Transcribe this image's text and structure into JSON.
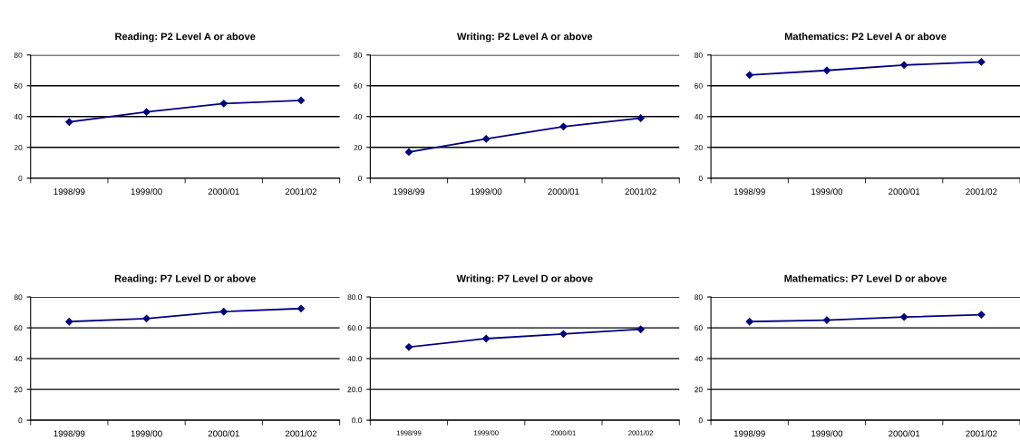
{
  "chart_data": [
    {
      "type": "line",
      "title": "Reading: P2 Level A or above",
      "categories": [
        "1998/99",
        "1999/00",
        "2000/01",
        "2001/02"
      ],
      "series": [
        {
          "color": "#000080",
          "values": [
            36.5,
            43,
            48.5,
            50.5
          ]
        }
      ],
      "ylim": [
        0,
        80
      ],
      "yticks": [
        0,
        20,
        40,
        60,
        80
      ],
      "grid": "y",
      "marker": "diamond",
      "line_style": "solid"
    },
    {
      "type": "line",
      "title": "Writing: P2 Level A or above",
      "categories": [
        "1998/99",
        "1999/00",
        "2000/01",
        "2001/02"
      ],
      "series": [
        {
          "color": "#000080",
          "values": [
            17,
            25.5,
            33.5,
            39
          ]
        }
      ],
      "ylim": [
        0,
        80
      ],
      "yticks": [
        0,
        20,
        40,
        60,
        80
      ],
      "grid": "y",
      "marker": "diamond",
      "line_style": "solid"
    },
    {
      "type": "line",
      "title": "Mathematics: P2 Level A or above",
      "categories": [
        "1998/99",
        "1999/00",
        "2000/01",
        "2001/02"
      ],
      "series": [
        {
          "color": "#000080",
          "values": [
            67,
            70,
            73.5,
            75.5
          ]
        }
      ],
      "ylim": [
        0,
        80
      ],
      "yticks": [
        0,
        20,
        40,
        60,
        80
      ],
      "grid": "y",
      "marker": "diamond",
      "line_style": "solid"
    },
    {
      "type": "line",
      "title": "Reading: P7 Level D or above",
      "categories": [
        "1998/99",
        "1999/00",
        "2000/01",
        "2001/02"
      ],
      "series": [
        {
          "color": "#000080",
          "values": [
            64,
            66,
            70.5,
            72.5
          ]
        }
      ],
      "ylim": [
        0,
        80
      ],
      "yticks": [
        0,
        20,
        40,
        60,
        80
      ],
      "grid": "y",
      "marker": "diamond",
      "line_style": "solid"
    },
    {
      "type": "line",
      "title": "Writing: P7 Level D or above",
      "categories": [
        "1998/99",
        "1999/00",
        "2000/01",
        "2001/02"
      ],
      "series": [
        {
          "color": "#000080",
          "values": [
            47.5,
            53,
            56,
            59
          ]
        }
      ],
      "ylim": [
        0,
        80
      ],
      "yticks": [
        {
          "value": 0,
          "label": "0.0"
        },
        {
          "value": 20,
          "label": "20.0"
        },
        {
          "value": 40,
          "label": "40.0"
        },
        {
          "value": 60,
          "label": "60.0"
        },
        {
          "value": 80,
          "label": "80.0"
        }
      ],
      "grid": "y",
      "marker": "diamond",
      "line_style": "solid"
    },
    {
      "type": "line",
      "title": "Mathematics: P7 Level D or above",
      "categories": [
        "1998/99",
        "1999/00",
        "2000/01",
        "2001/02"
      ],
      "series": [
        {
          "color": "#000080",
          "values": [
            64,
            65,
            67,
            68.5
          ]
        }
      ],
      "ylim": [
        0,
        80
      ],
      "yticks": [
        0,
        20,
        40,
        60,
        80
      ],
      "grid": "y",
      "marker": "diamond",
      "line_style": "solid"
    }
  ]
}
